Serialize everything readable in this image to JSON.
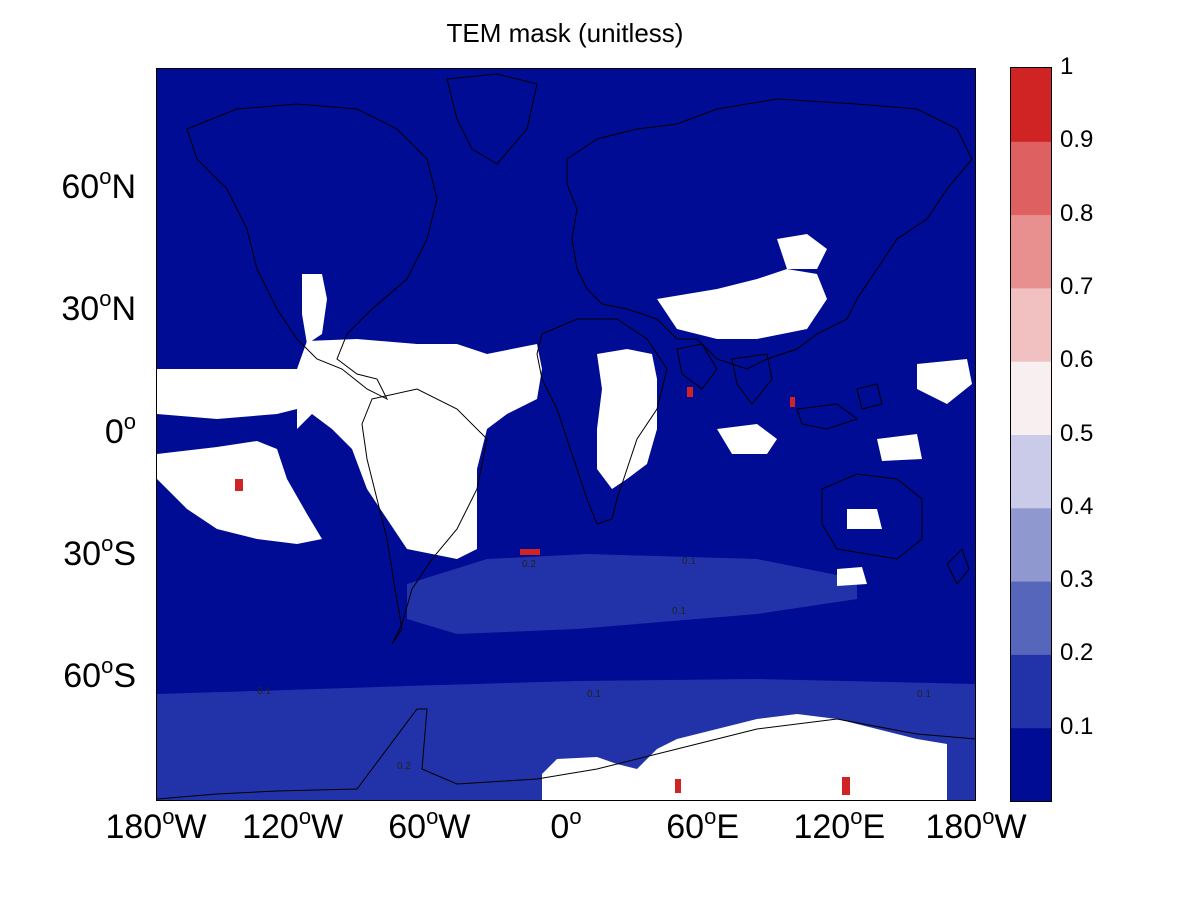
{
  "title": "TEM mask (unitless)",
  "colors": {
    "background_value": "#000c94",
    "coastline": "#000000"
  },
  "map": {
    "projection": "equirectangular",
    "lon_range": [
      -180,
      180
    ],
    "lat_range": [
      -90,
      90
    ],
    "lat_ticks": [
      {
        "value": 60,
        "num": "60",
        "hemi": "N"
      },
      {
        "value": 30,
        "num": "30",
        "hemi": "N"
      },
      {
        "value": 0,
        "num": "0",
        "hemi": ""
      },
      {
        "value": -30,
        "num": "30",
        "hemi": "S"
      },
      {
        "value": -60,
        "num": "60",
        "hemi": "S"
      }
    ],
    "lon_ticks": [
      {
        "value": -180,
        "num": "180",
        "hemi": "W"
      },
      {
        "value": -120,
        "num": "120",
        "hemi": "W"
      },
      {
        "value": -60,
        "num": "60",
        "hemi": "W"
      },
      {
        "value": 0,
        "num": "0",
        "hemi": ""
      },
      {
        "value": 60,
        "num": "60",
        "hemi": "E"
      },
      {
        "value": 120,
        "num": "120",
        "hemi": "E"
      },
      {
        "value": 180,
        "num": "180",
        "hemi": "W"
      }
    ],
    "contour_labels": [
      "0.1",
      "0.1",
      "0.1",
      "0.1",
      "0.2",
      "0.1",
      "0.2"
    ]
  },
  "colorbar": {
    "levels": [
      {
        "value": "0.1",
        "color": "#000c94"
      },
      {
        "value": "0.2",
        "color": "#2233aa"
      },
      {
        "value": "0.3",
        "color": "#5566bb"
      },
      {
        "value": "0.4",
        "color": "#9098d0"
      },
      {
        "value": "0.5",
        "color": "#c9cbe8"
      },
      {
        "value": "0.6",
        "color": "#f7eff0"
      },
      {
        "value": "0.7",
        "color": "#f1c1c1"
      },
      {
        "value": "0.8",
        "color": "#e89090"
      },
      {
        "value": "0.9",
        "color": "#de6060"
      },
      {
        "value": "1",
        "color": "#d02424"
      }
    ]
  }
}
